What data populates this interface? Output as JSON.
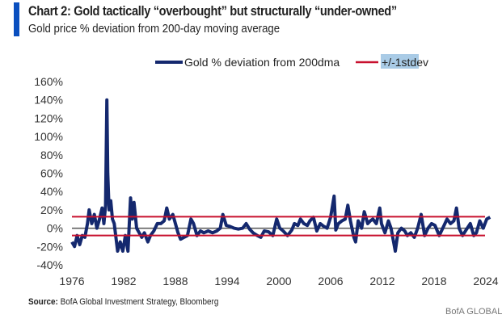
{
  "header": {
    "title": "Chart 2: Gold tactically “overbought” but structurally “under-owned”",
    "subtitle": "Gold price % deviation from 200-day moving average"
  },
  "footer": {
    "source_label": "Source:",
    "source_text": " BofA Global Investment Strategy, Bloomberg",
    "watermark": "BofA GLOBAL"
  },
  "colors": {
    "series": "#14286e",
    "band": "#c8102e",
    "zero": "#555555",
    "accent": "#0a4fbf",
    "highlight": "#a9cbe6"
  },
  "chart_data": {
    "type": "line",
    "title": "Chart 2: Gold tactically “overbought” but structurally “under-owned”",
    "subtitle": "Gold price % deviation from 200-day moving average",
    "xlabel": "",
    "ylabel": "",
    "xlim": [
      1976,
      2024
    ],
    "ylim": [
      -40,
      160
    ],
    "x_ticks": [
      "1976",
      "1982",
      "1988",
      "1994",
      "2000",
      "2006",
      "2012",
      "2018",
      "2024"
    ],
    "y_ticks": [
      "160%",
      "140%",
      "120%",
      "100%",
      "80%",
      "60%",
      "40%",
      "20%",
      "0%",
      "-20%",
      "-40%"
    ],
    "y_tick_values": [
      160,
      140,
      120,
      100,
      80,
      60,
      40,
      20,
      0,
      -20,
      -40
    ],
    "legend": {
      "placement": "top",
      "entries": [
        "Gold % deviation from 200dma",
        "+/-1stdev"
      ]
    },
    "bands": {
      "upper": 12.5,
      "lower": -8
    },
    "series": [
      {
        "name": "Gold % deviation from 200dma",
        "points": [
          [
            1976.0,
            -15
          ],
          [
            1976.3,
            -20
          ],
          [
            1976.6,
            -8
          ],
          [
            1976.9,
            -18
          ],
          [
            1977.2,
            -8
          ],
          [
            1977.5,
            -10
          ],
          [
            1977.8,
            5
          ],
          [
            1978.0,
            20
          ],
          [
            1978.3,
            5
          ],
          [
            1978.6,
            15
          ],
          [
            1978.9,
            0
          ],
          [
            1979.2,
            10
          ],
          [
            1979.5,
            22
          ],
          [
            1979.7,
            5
          ],
          [
            1979.9,
            25
          ],
          [
            1980.05,
            140
          ],
          [
            1980.15,
            60
          ],
          [
            1980.3,
            20
          ],
          [
            1980.5,
            30
          ],
          [
            1980.7,
            10
          ],
          [
            1980.9,
            5
          ],
          [
            1981.1,
            -10
          ],
          [
            1981.3,
            -25
          ],
          [
            1981.6,
            -15
          ],
          [
            1981.9,
            -25
          ],
          [
            1982.2,
            -8
          ],
          [
            1982.5,
            -25
          ],
          [
            1982.8,
            33
          ],
          [
            1983.0,
            10
          ],
          [
            1983.2,
            28
          ],
          [
            1983.5,
            0
          ],
          [
            1983.8,
            -5
          ],
          [
            1984.1,
            -10
          ],
          [
            1984.4,
            -5
          ],
          [
            1984.8,
            -15
          ],
          [
            1985.1,
            -8
          ],
          [
            1985.5,
            -3
          ],
          [
            1985.9,
            5
          ],
          [
            1986.3,
            5
          ],
          [
            1986.7,
            8
          ],
          [
            1987.0,
            22
          ],
          [
            1987.3,
            10
          ],
          [
            1987.7,
            15
          ],
          [
            1988.0,
            5
          ],
          [
            1988.3,
            -5
          ],
          [
            1988.6,
            -12
          ],
          [
            1989.0,
            -10
          ],
          [
            1989.4,
            -8
          ],
          [
            1989.8,
            10
          ],
          [
            1990.1,
            5
          ],
          [
            1990.5,
            -8
          ],
          [
            1990.9,
            -3
          ],
          [
            1991.3,
            -5
          ],
          [
            1991.8,
            -3
          ],
          [
            1992.3,
            -5
          ],
          [
            1992.8,
            -3
          ],
          [
            1993.2,
            0
          ],
          [
            1993.5,
            15
          ],
          [
            1993.9,
            3
          ],
          [
            1994.3,
            2
          ],
          [
            1994.8,
            0
          ],
          [
            1995.3,
            -1
          ],
          [
            1995.8,
            0
          ],
          [
            1996.2,
            5
          ],
          [
            1996.6,
            -1
          ],
          [
            1997.0,
            -5
          ],
          [
            1997.5,
            -8
          ],
          [
            1997.9,
            -10
          ],
          [
            1998.3,
            -3
          ],
          [
            1998.8,
            -4
          ],
          [
            1999.3,
            -8
          ],
          [
            1999.75,
            10
          ],
          [
            2000.1,
            0
          ],
          [
            2000.5,
            -3
          ],
          [
            2001.0,
            -8
          ],
          [
            2001.5,
            -2
          ],
          [
            2001.8,
            5
          ],
          [
            2002.2,
            3
          ],
          [
            2002.5,
            10
          ],
          [
            2002.9,
            5
          ],
          [
            2003.3,
            3
          ],
          [
            2003.6,
            8
          ],
          [
            2004.0,
            12
          ],
          [
            2004.4,
            -3
          ],
          [
            2004.8,
            5
          ],
          [
            2005.2,
            2
          ],
          [
            2005.6,
            0
          ],
          [
            2006.0,
            12
          ],
          [
            2006.4,
            35
          ],
          [
            2006.6,
            -2
          ],
          [
            2006.9,
            5
          ],
          [
            2007.3,
            8
          ],
          [
            2007.7,
            10
          ],
          [
            2008.0,
            25
          ],
          [
            2008.3,
            8
          ],
          [
            2008.7,
            -10
          ],
          [
            2008.9,
            -15
          ],
          [
            2009.2,
            8
          ],
          [
            2009.6,
            0
          ],
          [
            2009.9,
            18
          ],
          [
            2010.3,
            5
          ],
          [
            2010.6,
            8
          ],
          [
            2010.9,
            10
          ],
          [
            2011.3,
            5
          ],
          [
            2011.7,
            22
          ],
          [
            2011.9,
            5
          ],
          [
            2012.3,
            -5
          ],
          [
            2012.7,
            8
          ],
          [
            2013.0,
            0
          ],
          [
            2013.3,
            -15
          ],
          [
            2013.5,
            -25
          ],
          [
            2013.8,
            -5
          ],
          [
            2014.2,
            0
          ],
          [
            2014.6,
            -3
          ],
          [
            2014.9,
            -8
          ],
          [
            2015.3,
            -5
          ],
          [
            2015.7,
            -10
          ],
          [
            2016.1,
            0
          ],
          [
            2016.5,
            15
          ],
          [
            2016.9,
            -8
          ],
          [
            2017.3,
            0
          ],
          [
            2017.7,
            5
          ],
          [
            2018.1,
            3
          ],
          [
            2018.6,
            -8
          ],
          [
            2019.0,
            0
          ],
          [
            2019.5,
            10
          ],
          [
            2019.9,
            5
          ],
          [
            2020.3,
            8
          ],
          [
            2020.6,
            22
          ],
          [
            2020.9,
            0
          ],
          [
            2021.3,
            -8
          ],
          [
            2021.7,
            -2
          ],
          [
            2022.2,
            5
          ],
          [
            2022.6,
            -8
          ],
          [
            2022.9,
            -5
          ],
          [
            2023.3,
            8
          ],
          [
            2023.7,
            0
          ],
          [
            2024.1,
            10
          ],
          [
            2024.5,
            12
          ]
        ]
      }
    ]
  }
}
